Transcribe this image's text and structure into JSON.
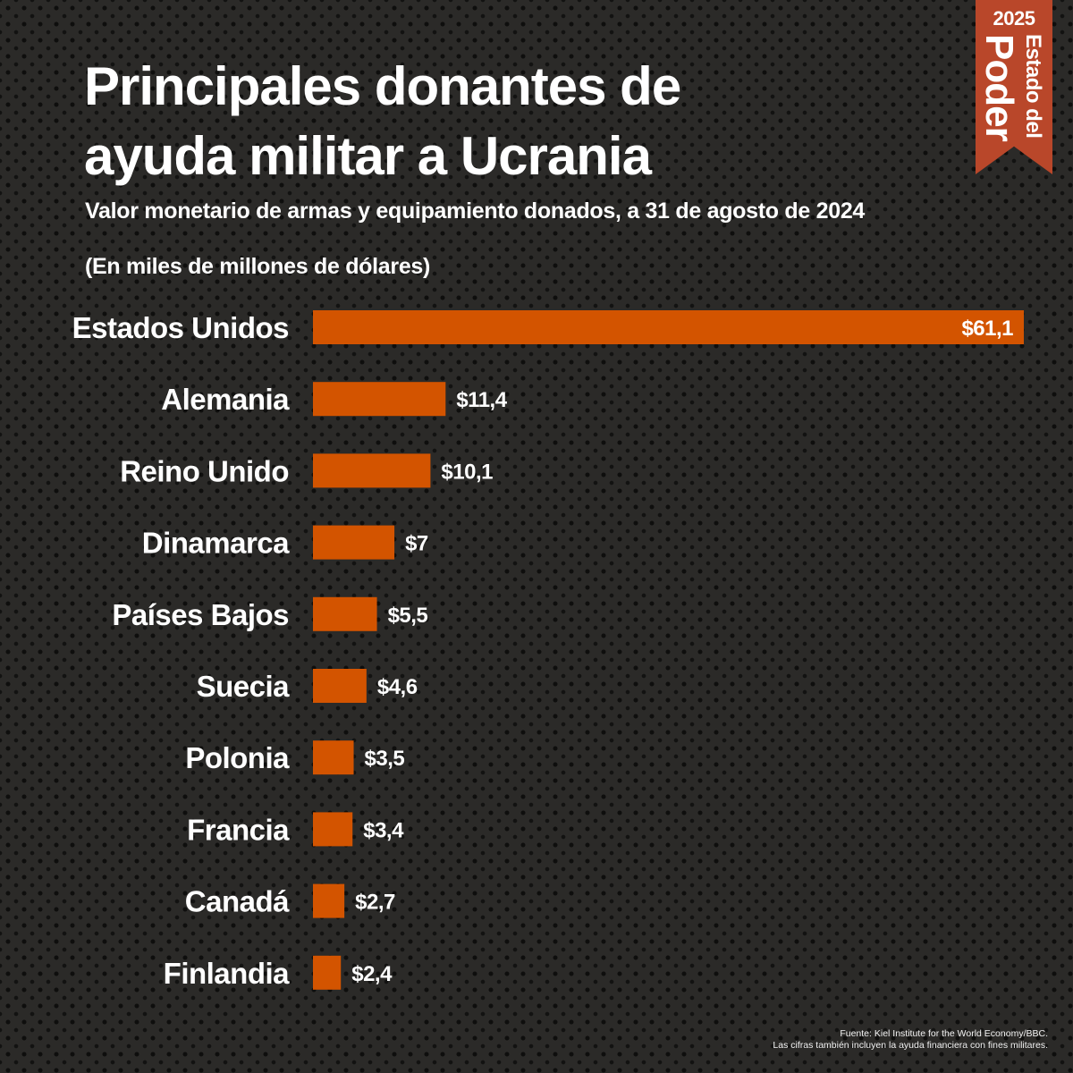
{
  "header": {
    "title_line1": "Principales donantes de",
    "title_line2": "ayuda militar a Ucrania",
    "subtitle": "Valor monetario de armas y equipamiento donados, a 31 de agosto de 2024",
    "unit_note": "(En miles de millones de dólares)"
  },
  "badge": {
    "year": "2025",
    "line_small": "Estado del",
    "line_big": "Poder",
    "color": "#b9472a"
  },
  "footer": {
    "source": "Fuente: Kiel Institute for the World Economy/BBC.",
    "note": "Las cifras también incluyen la ayuda financiera con fines militares."
  },
  "chart_data": {
    "type": "bar",
    "orientation": "horizontal",
    "title": "Principales donantes de ayuda militar a Ucrania",
    "subtitle": "Valor monetario de armas y equipamiento donados, a 31 de agosto de 2024",
    "xlabel": "",
    "ylabel": "",
    "unit": "miles de millones de dólares",
    "categories": [
      "Estados Unidos",
      "Alemania",
      "Reino Unido",
      "Dinamarca",
      "Países Bajos",
      "Suecia",
      "Polonia",
      "Francia",
      "Canadá",
      "Finlandia"
    ],
    "values": [
      61.1,
      11.4,
      10.1,
      7,
      5.5,
      4.6,
      3.5,
      3.4,
      2.7,
      2.4
    ],
    "labels": [
      "$61,1",
      "$11,4",
      "$10,1",
      "$7",
      "$5,5",
      "$4,6",
      "$3,5",
      "$3,4",
      "$2,7",
      "$2,4"
    ],
    "xlim": [
      0,
      61.1
    ],
    "grid": false,
    "legend": "none",
    "bar_color": "#d35400",
    "background_color": "#2b2a28"
  }
}
